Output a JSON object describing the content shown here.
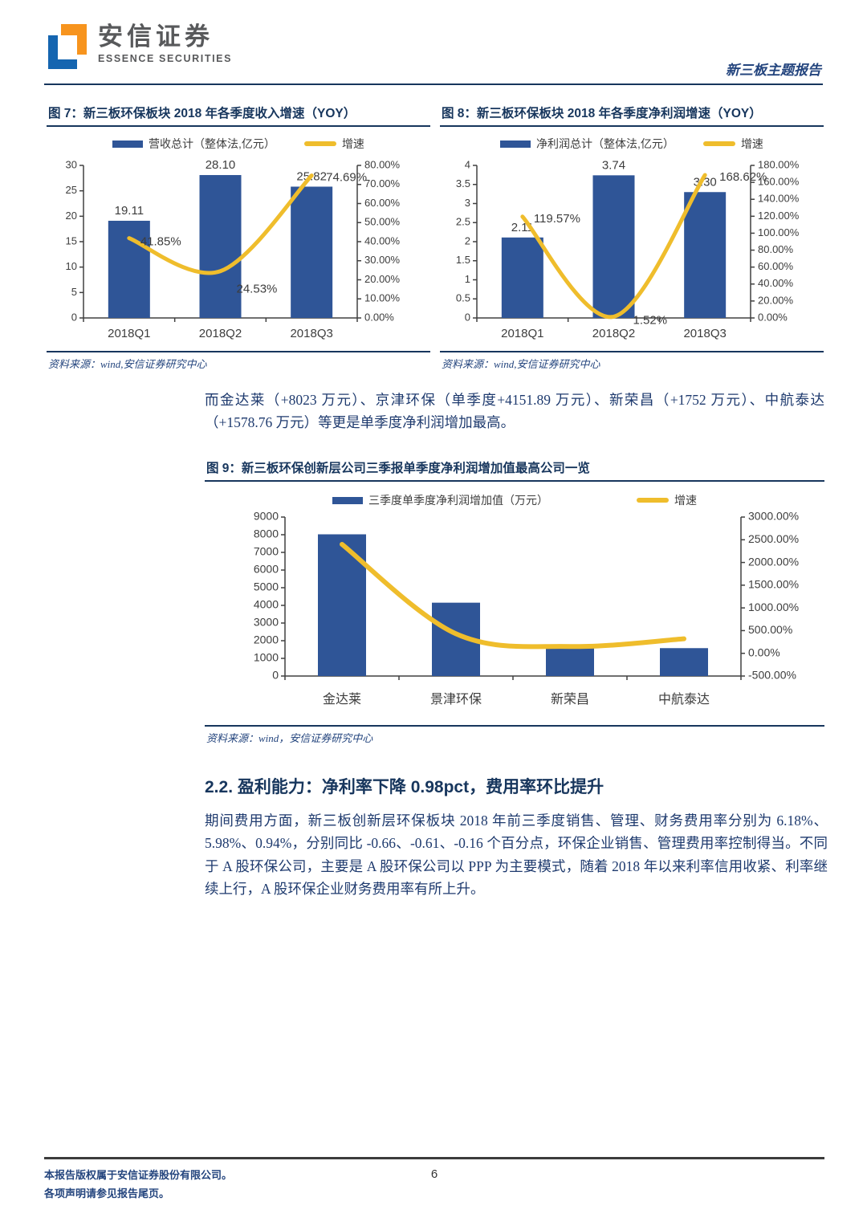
{
  "header": {
    "brand_cn": "安信证券",
    "brand_en": "ESSENCE SECURITIES",
    "report_type": "新三板主题报告"
  },
  "intro_paragraph": "而金达莱（+8023 万元）、京津环保（单季度+4151.89 万元）、新荣昌（+1752 万元）、中航泰达（+1578.76 万元）等更是单季度净利润增加最高。",
  "section": {
    "heading": "2.2. 盈利能力：净利率下降 0.98pct，费用率环比提升",
    "body": "期间费用方面，新三板创新层环保板块 2018 年前三季度销售、管理、财务费用率分别为 6.18%、5.98%、0.94%，分别同比 -0.66、-0.61、-0.16 个百分点，环保企业销售、管理费用率控制得当。不同于 A 股环保公司，主要是 A 股环保公司以 PPP 为主要模式，随着 2018 年以来利率信用收紧、利率继续上行，A 股环保企业财务费用率有所上升。"
  },
  "footer": {
    "line1": "本报告版权属于安信证券股份有限公司。",
    "line2": "各项声明请参见报告尾页。",
    "page_number": "6"
  },
  "colors": {
    "title_navy": "#17365D",
    "body_navy": "#1E3A6E",
    "bar_fill": "#2F5597",
    "line_gold": "#EFBD2C",
    "brand_gray": "#58595B",
    "logo_orange": "#F7941E",
    "logo_blue": "#1565B0"
  },
  "chart_data": [
    {
      "id": "fig7",
      "type": "bar",
      "subtype": "bar+line combo",
      "title": "图 7：新三板环保板块 2018 年各季度收入增速（YOY）",
      "categories": [
        "2018Q1",
        "2018Q2",
        "2018Q3"
      ],
      "series": [
        {
          "name": "营收总计（整体法,亿元）",
          "type": "bar",
          "axis": "left",
          "values": [
            19.11,
            28.1,
            25.82
          ],
          "labels": [
            "19.11",
            "28.10",
            "25.82"
          ]
        },
        {
          "name": "增速",
          "type": "line",
          "axis": "right",
          "values": [
            41.85,
            24.53,
            74.69
          ],
          "labels": [
            "41.85%",
            "24.53%",
            "74.69%"
          ]
        }
      ],
      "left_axis": {
        "min": 0,
        "max": 30,
        "step": 5,
        "tick_labels": [
          "0",
          "5",
          "10",
          "15",
          "20",
          "25",
          "30"
        ]
      },
      "right_axis": {
        "min": 0,
        "max": 80,
        "step": 10,
        "tick_labels": [
          "0.00%",
          "10.00%",
          "20.00%",
          "30.00%",
          "40.00%",
          "50.00%",
          "60.00%",
          "70.00%",
          "80.00%"
        ]
      },
      "legend_position": "top-center",
      "grid": false,
      "source": "资料来源：wind,安信证券研究中心"
    },
    {
      "id": "fig8",
      "type": "bar",
      "subtype": "bar+line combo",
      "title": "图 8：新三板环保板块 2018 年各季度净利润增速（YOY）",
      "categories": [
        "2018Q1",
        "2018Q2",
        "2018Q3"
      ],
      "series": [
        {
          "name": "净利润总计（整体法,亿元）",
          "type": "bar",
          "axis": "left",
          "values": [
            2.11,
            3.74,
            3.3
          ],
          "labels": [
            "2.11",
            "3.74",
            "3.30"
          ]
        },
        {
          "name": "增速",
          "type": "line",
          "axis": "right",
          "values": [
            119.57,
            1.52,
            168.62
          ],
          "labels": [
            "119.57%",
            "1.52%",
            "168.62%"
          ]
        }
      ],
      "left_axis": {
        "min": 0,
        "max": 4,
        "step": 0.5,
        "tick_labels": [
          "0",
          "0.5",
          "1",
          "1.5",
          "2",
          "2.5",
          "3",
          "3.5",
          "4"
        ]
      },
      "right_axis": {
        "min": 0,
        "max": 180,
        "step": 20,
        "tick_labels": [
          "0.00%",
          "20.00%",
          "40.00%",
          "60.00%",
          "80.00%",
          "100.00%",
          "120.00%",
          "140.00%",
          "160.00%",
          "180.00%"
        ]
      },
      "legend_position": "top-center",
      "grid": false,
      "source": "资料来源：wind,安信证券研究中心"
    },
    {
      "id": "fig9",
      "type": "bar",
      "subtype": "bar+line combo",
      "title": "图 9：新三板环保创新层公司三季报单季度净利润增加值最高公司一览",
      "categories": [
        "金达莱",
        "景津环保",
        "新荣昌",
        "中航泰达"
      ],
      "series": [
        {
          "name": "三季度单季度净利润增加值（万元）",
          "type": "bar",
          "axis": "left",
          "values": [
            8023,
            4152,
            1752,
            1579
          ],
          "labels": null
        },
        {
          "name": "增速",
          "type": "line",
          "axis": "right",
          "values": [
            2400,
            430,
            150,
            320
          ],
          "labels": null
        }
      ],
      "left_axis": {
        "min": 0,
        "max": 9000,
        "step": 1000,
        "tick_labels": [
          "0",
          "1000",
          "2000",
          "3000",
          "4000",
          "5000",
          "6000",
          "7000",
          "8000",
          "9000"
        ]
      },
      "right_axis": {
        "min": -500,
        "max": 3000,
        "step": 500,
        "tick_labels": [
          "-500.00%",
          "0.00%",
          "500.00%",
          "1000.00%",
          "1500.00%",
          "2000.00%",
          "2500.00%",
          "3000.00%"
        ]
      },
      "legend_position": "top-center",
      "grid": false,
      "source": "资料来源：wind，安信证券研究中心"
    }
  ]
}
